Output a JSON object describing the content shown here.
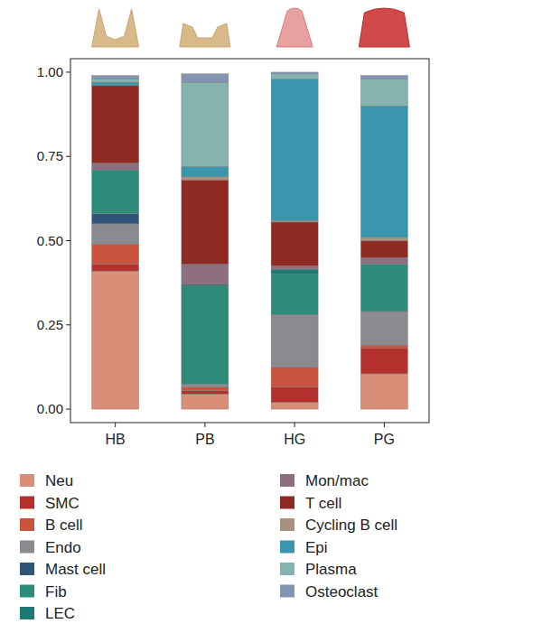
{
  "chart_data": {
    "type": "bar",
    "stacked": true,
    "legend": "bottom",
    "categories": [
      "HB",
      "PB",
      "HG",
      "PG"
    ],
    "ylim": [
      -0.04,
      1.04
    ],
    "yticks": [
      {
        "value": 0,
        "label": "0.00"
      },
      {
        "value": 0.25,
        "label": "0.25"
      },
      {
        "value": 0.5,
        "label": "0.50"
      },
      {
        "value": 0.75,
        "label": "0.75"
      },
      {
        "value": 1,
        "label": "1.00"
      }
    ],
    "series": [
      {
        "name": "Neu",
        "color": "#d98e78",
        "values": [
          0.41,
          0.045,
          0.02,
          0.105
        ]
      },
      {
        "name": "SMC",
        "color": "#b3302c",
        "values": [
          0.02,
          0.01,
          0.045,
          0.075
        ]
      },
      {
        "name": "B cell",
        "color": "#c9543e",
        "values": [
          0.06,
          0.01,
          0.06,
          0.01
        ]
      },
      {
        "name": "Endo",
        "color": "#8a8a8f",
        "values": [
          0.06,
          0.01,
          0.155,
          0.1
        ]
      },
      {
        "name": "Mast cell",
        "color": "#2e5478",
        "values": [
          0.03,
          0.0,
          0.0,
          0.0
        ]
      },
      {
        "name": "Fib",
        "color": "#2e8b7a",
        "values": [
          0.13,
          0.29,
          0.12,
          0.14
        ]
      },
      {
        "name": "LEC",
        "color": "#1d7a72",
        "values": [
          0.0,
          0.005,
          0.015,
          0.0
        ]
      },
      {
        "name": "Mon/mac",
        "color": "#8d6f80",
        "values": [
          0.02,
          0.06,
          0.01,
          0.02
        ]
      },
      {
        "name": "T cell",
        "color": "#8e2a22",
        "values": [
          0.23,
          0.25,
          0.13,
          0.05
        ]
      },
      {
        "name": "Cycling B cell",
        "color": "#a8927f",
        "values": [
          0.0,
          0.01,
          0.005,
          0.01
        ]
      },
      {
        "name": "Epi",
        "color": "#3a96ae",
        "values": [
          0.01,
          0.03,
          0.42,
          0.39
        ]
      },
      {
        "name": "Plasma",
        "color": "#86b3ae",
        "values": [
          0.01,
          0.25,
          0.015,
          0.08
        ]
      },
      {
        "name": "Osteoclast",
        "color": "#8495b2",
        "values": [
          0.01,
          0.025,
          0.005,
          0.01
        ]
      }
    ]
  }
}
